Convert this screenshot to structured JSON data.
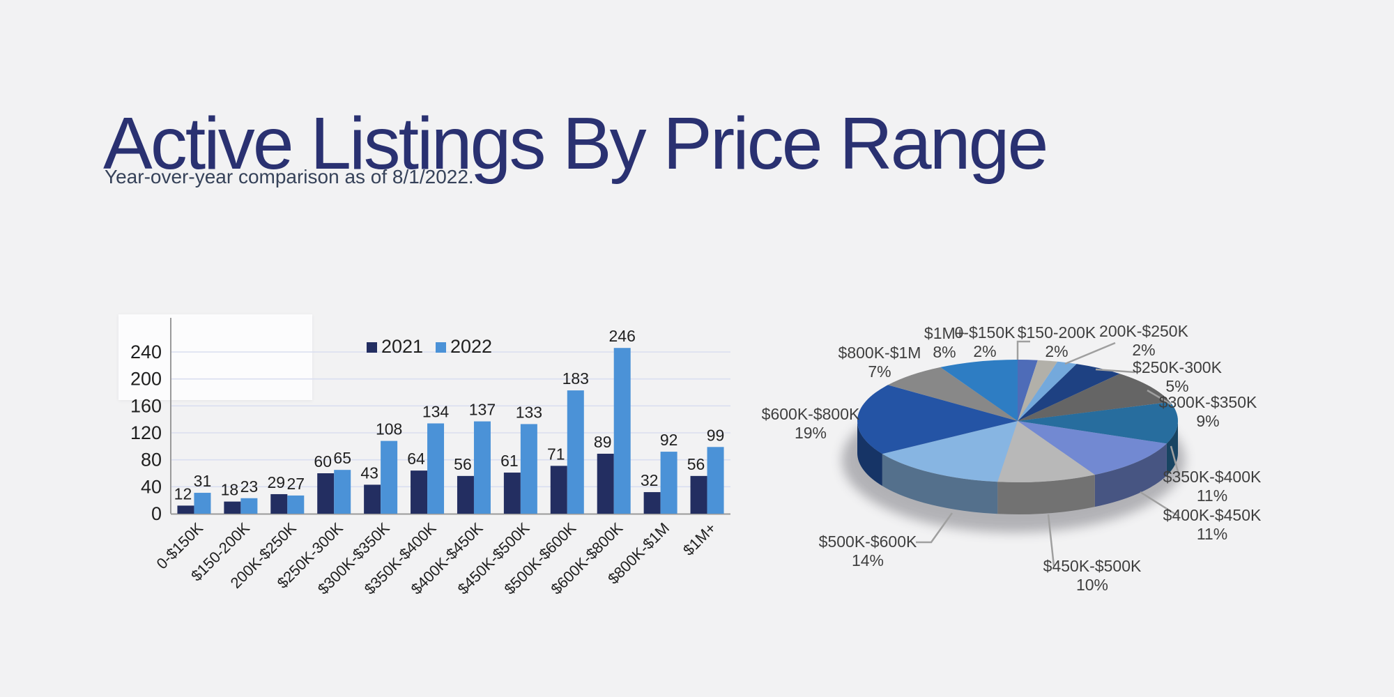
{
  "page": {
    "title": "Active Listings By Price Range",
    "subtitle": "Year-over-year comparison as of 8/1/2022.",
    "colors": {
      "background": "#f2f2f3",
      "title": "#2a3171",
      "subtitle": "#364259"
    }
  },
  "chart_data": [
    {
      "type": "bar",
      "title": "",
      "categories": [
        "0-$150K",
        "$150-200K",
        "200K-$250K",
        "$250K-300K",
        "$300K-$350K",
        "$350K-$400K",
        "$400K-$450K",
        "$450K-$500K",
        "$500K-$600K",
        "$600K-$800K",
        "$800K-$1M",
        "$1M+"
      ],
      "series": [
        {
          "name": "2021",
          "color": "#232e61",
          "values": [
            12,
            18,
            29,
            60,
            43,
            64,
            56,
            61,
            71,
            89,
            32,
            56
          ]
        },
        {
          "name": "2022",
          "color": "#4b92d7",
          "values": [
            31,
            23,
            27,
            65,
            108,
            134,
            137,
            133,
            183,
            246,
            92,
            99
          ]
        }
      ],
      "xlabel": "",
      "ylabel": "",
      "ylim": [
        0,
        260
      ],
      "yticks": [
        0,
        40,
        80,
        120,
        160,
        200,
        240
      ],
      "grid": true,
      "grid_color": "#d9def0",
      "axis_color": "#9a9a9a",
      "label_color": "#1f1f1f",
      "legend_position": "top-center",
      "value_labels": true
    },
    {
      "type": "pie",
      "style": "3d",
      "start_angle_deg": 0,
      "direction": "clockwise",
      "labels": [
        "0-$150K",
        "$150-200K",
        "200K-$250K",
        "$250K-300K",
        "$300K-$350K",
        "$350K-$400K",
        "$400K-$450K",
        "$450K-$500K",
        "$500K-$600K",
        "$600K-$800K",
        "$800K-$1M",
        "$1M+"
      ],
      "values": [
        2,
        2,
        2,
        5,
        9,
        11,
        11,
        10,
        14,
        19,
        7,
        8
      ],
      "unit": "%",
      "colors": [
        "#4e6cb8",
        "#b2b0a9",
        "#74a9dc",
        "#1e4182",
        "#656565",
        "#276d9e",
        "#7289d2",
        "#b8b8b8",
        "#87b5e2",
        "#2454a5",
        "#888888",
        "#2e7dc3"
      ],
      "label_color": "#3f3f3f",
      "leader_color": "#9f9f9f",
      "legend_position": "none"
    }
  ]
}
